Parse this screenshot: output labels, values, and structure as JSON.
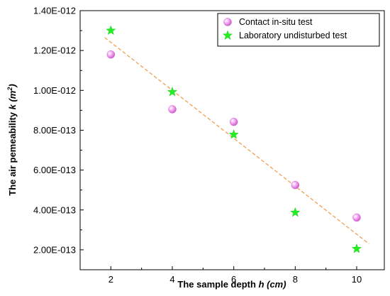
{
  "chart_data": {
    "type": "scatter",
    "xlabel": {
      "prefix": "The sample depth ",
      "symbol": "h",
      "unit": " (cm)"
    },
    "ylabel": {
      "prefix": "The air pemeability ",
      "symbol": "k",
      "unit_open": " (",
      "unit_base": "m",
      "unit_exp": "2",
      "unit_close": ")"
    },
    "x_ticks": [
      2,
      4,
      6,
      8,
      10
    ],
    "x_tick_labels": [
      "2",
      "4",
      "6",
      "8",
      "10"
    ],
    "y_ticks": [
      2e-13,
      4e-13,
      6e-13,
      8e-13,
      1e-12,
      1.2e-12,
      1.4e-12
    ],
    "y_tick_labels": [
      "2.00E-013",
      "4.00E-013",
      "6.00E-013",
      "8.00E-013",
      "1.00E-012",
      "1.20E-012",
      "1.40E-012"
    ],
    "xlim": [
      1.0,
      10.9
    ],
    "ylim": [
      1e-13,
      1.4e-12
    ],
    "grid": false,
    "legend_position": "top-right",
    "series": [
      {
        "name": "Contact in-situ test",
        "marker": "sphere",
        "color": "#ee88ee",
        "points": [
          {
            "x": 2,
            "y": 1.18e-12
          },
          {
            "x": 4,
            "y": 9.05e-13
          },
          {
            "x": 6,
            "y": 8.42e-13
          },
          {
            "x": 8,
            "y": 5.25e-13
          },
          {
            "x": 10,
            "y": 3.62e-13
          }
        ]
      },
      {
        "name": "Laboratory undisturbed test",
        "marker": "star",
        "color": "#22ee22",
        "points": [
          {
            "x": 2,
            "y": 1.3e-12
          },
          {
            "x": 4,
            "y": 9.92e-13
          },
          {
            "x": 6,
            "y": 7.78e-13
          },
          {
            "x": 8,
            "y": 3.87e-13
          },
          {
            "x": 10,
            "y": 2.05e-13
          }
        ]
      }
    ],
    "trendline": {
      "style": "dashed",
      "color": "#f0a050",
      "start": {
        "x": 1.8,
        "y": 1.265e-12
      },
      "end": {
        "x": 10.4,
        "y": 2.3e-13
      }
    }
  }
}
